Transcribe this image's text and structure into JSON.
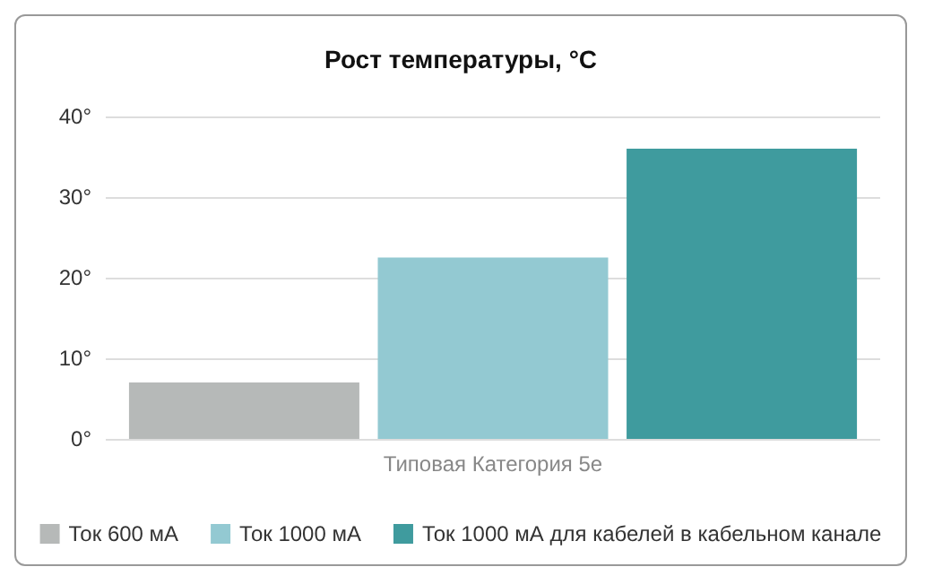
{
  "chart_data": {
    "type": "bar",
    "title": "Рост температуры, °C",
    "categories": [
      "Типовая Категория 5e"
    ],
    "series": [
      {
        "name": "Ток 600 мА",
        "color": "#b6b9b8",
        "values": [
          7
        ]
      },
      {
        "name": "Ток 1000 мА",
        "color": "#93c9d2",
        "values": [
          22.5
        ]
      },
      {
        "name": "Ток 1000 мА для кабелей в кабельном канале",
        "color": "#3f9b9e",
        "values": [
          36
        ]
      }
    ],
    "ylim": [
      0,
      40
    ],
    "yticks": [
      {
        "value": 0,
        "label": "0°"
      },
      {
        "value": 10,
        "label": "10°"
      },
      {
        "value": 20,
        "label": "20°"
      },
      {
        "value": 30,
        "label": "30°"
      },
      {
        "value": 40,
        "label": "40°"
      }
    ],
    "grid": "y",
    "legend": "bottom"
  }
}
